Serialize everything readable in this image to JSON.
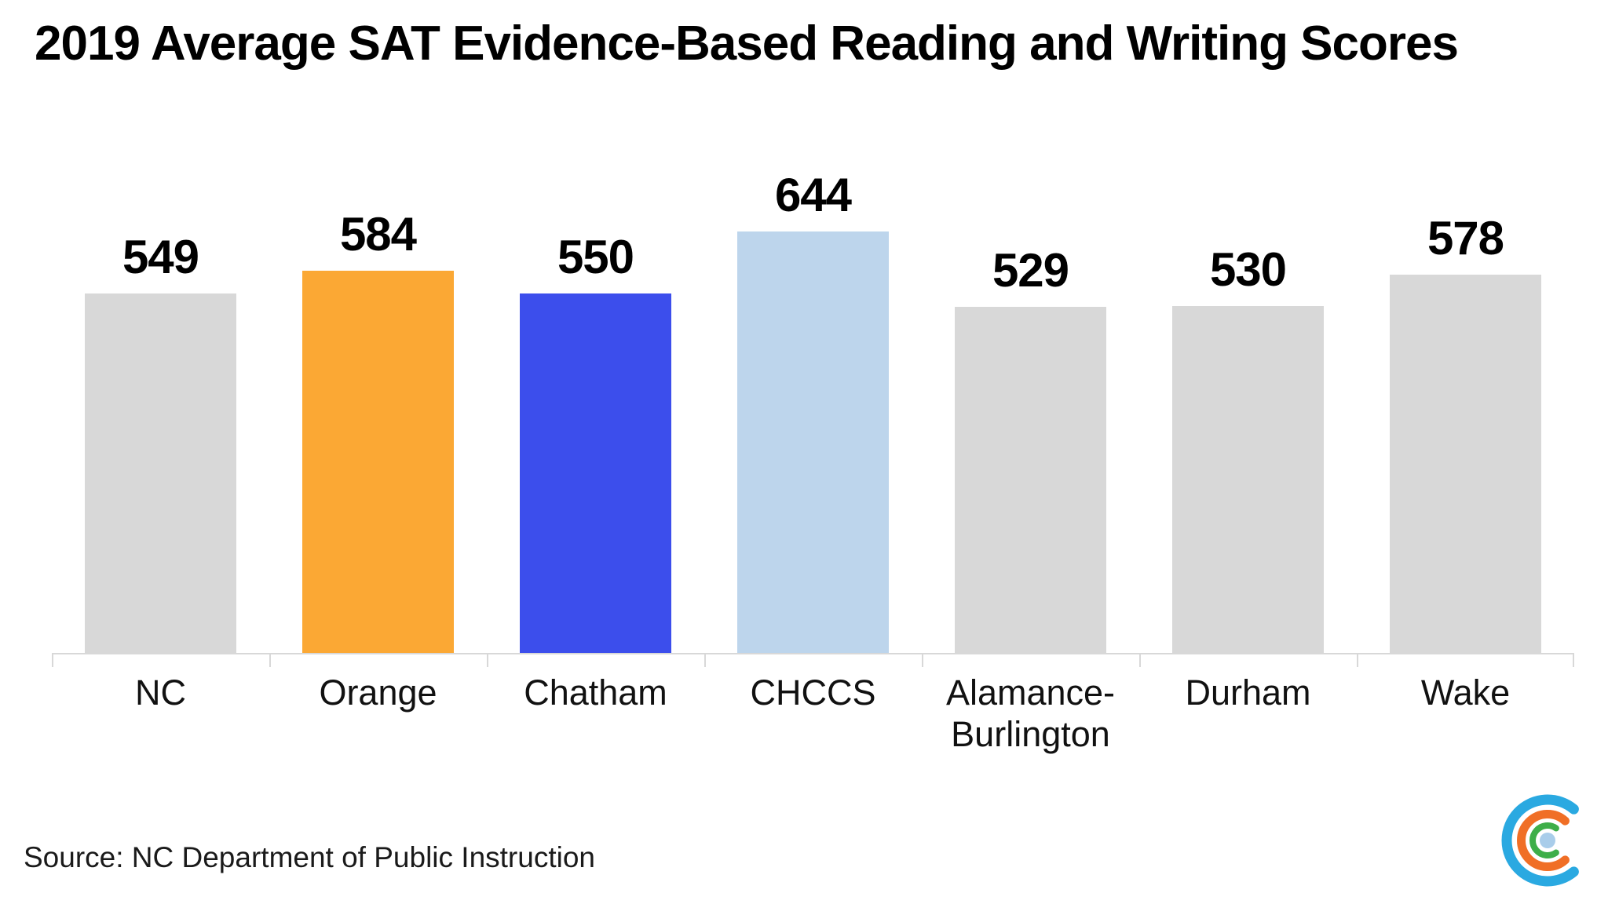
{
  "title": "2019 Average SAT Evidence-Based Reading and Writing Scores",
  "source": "Source: NC Department of Public Instruction",
  "logo": {
    "icon": "concentric-c-arcs",
    "colors": {
      "outer_arc": "#2AA9E1",
      "middle_arc": "#F06F26",
      "inner_arc": "#3EAE49",
      "center_dot": "#A9CDEA"
    }
  },
  "axis_color": "#D8D8D8",
  "chart_data": {
    "type": "bar",
    "title": "2019 Average SAT Evidence-Based Reading and Writing Scores",
    "categories": [
      "NC",
      "Orange",
      "Chatham",
      "CHCCS",
      "Alamance-\nBurlington",
      "Durham",
      "Wake"
    ],
    "values": [
      549,
      584,
      550,
      644,
      529,
      530,
      578
    ],
    "bar_colors": [
      "#D8D8D8",
      "#FBA834",
      "#3C4EEC",
      "#BDD5EC",
      "#D8D8D8",
      "#D8D8D8",
      "#D8D8D8"
    ],
    "value_labels_shown": true,
    "xlabel": "",
    "ylabel": "",
    "ylim": [
      0,
      700
    ],
    "grid": false,
    "legend": false,
    "y_axis_shown": false
  }
}
